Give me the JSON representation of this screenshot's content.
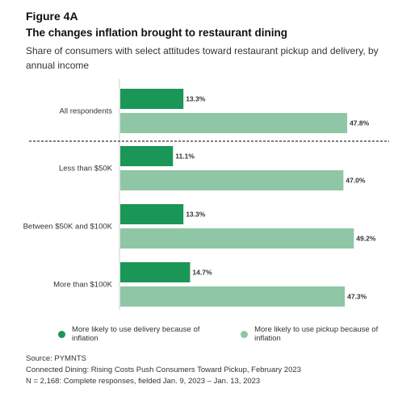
{
  "header": {
    "figure": "Figure 4A",
    "title": "The changes inflation brought to restaurant dining",
    "subtitle": "Share of consumers with select attitudes toward restaurant pickup and delivery, by annual income"
  },
  "colors": {
    "delivery": "#1a9656",
    "pickup": "#8fc6a5",
    "separator": "#555555",
    "axis": "#cfcfcf"
  },
  "chart_data": {
    "type": "bar",
    "orientation": "horizontal",
    "categories": [
      "All respondents",
      "Less than $50K",
      "Between $50K and $100K",
      "More than $100K"
    ],
    "series": [
      {
        "name": "More likely to use delivery because of inflation",
        "values": [
          13.3,
          11.1,
          13.3,
          14.7
        ],
        "labels": [
          "13.3%",
          "11.1%",
          "13.3%",
          "14.7%"
        ]
      },
      {
        "name": "More likely to use pickup because of inflation",
        "values": [
          47.8,
          47.0,
          49.2,
          47.3
        ],
        "labels": [
          "47.8%",
          "47.0%",
          "49.2%",
          "47.3%"
        ]
      }
    ],
    "xlim": [
      0,
      50
    ],
    "legend_position": "bottom"
  },
  "legend": {
    "items": [
      {
        "label": "More likely to use delivery because of inflation"
      },
      {
        "label": "More likely to use pickup because of inflation"
      }
    ]
  },
  "source": {
    "line1": "Source: PYMNTS",
    "line2": "Connected Dining: Rising Costs Push Consumers Toward Pickup, February 2023",
    "line3": "N = 2,168: Complete responses, fielded Jan. 9, 2023 – Jan. 13, 2023"
  }
}
